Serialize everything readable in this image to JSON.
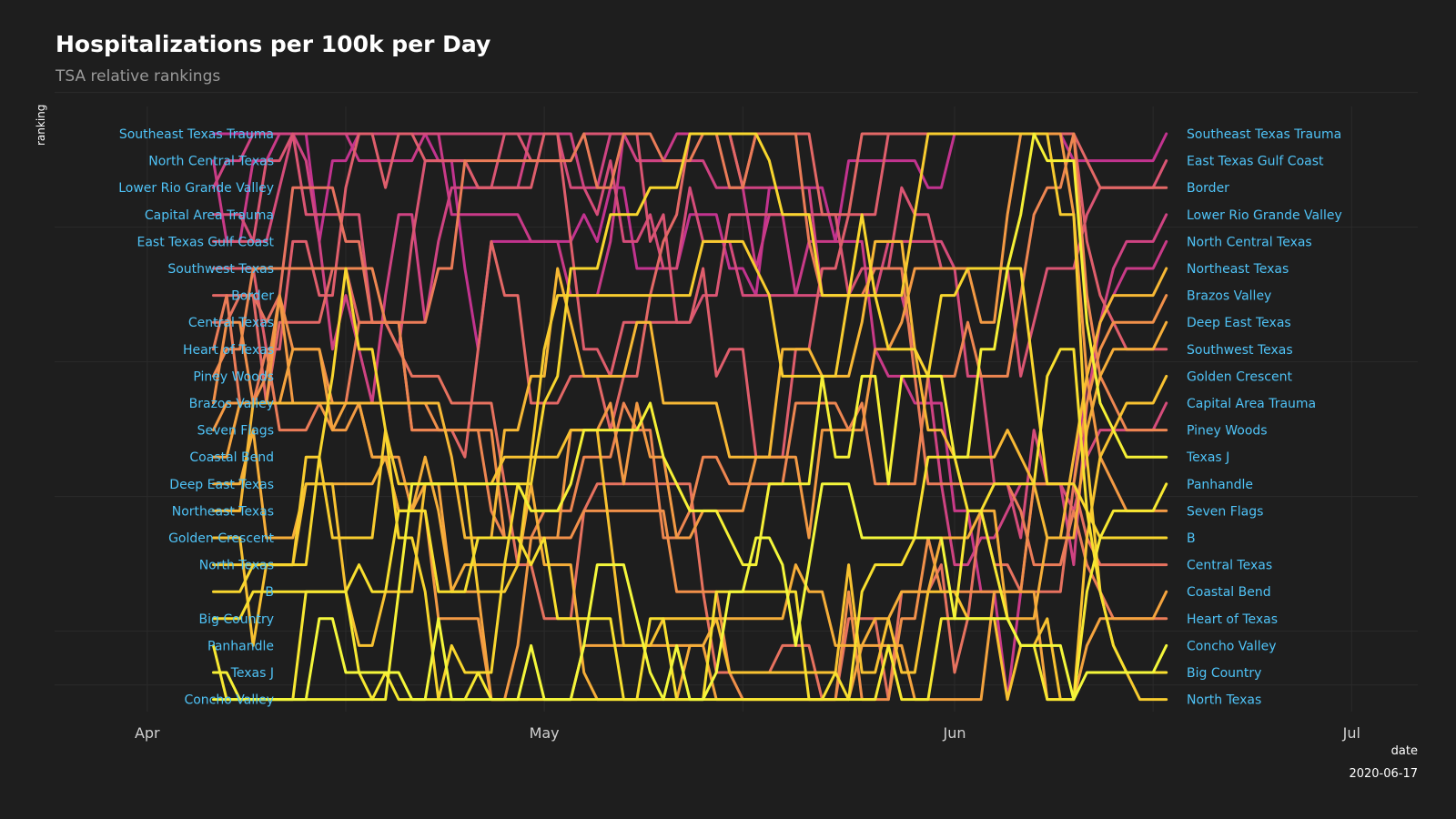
{
  "chart_data": {
    "type": "line",
    "title": "Hospitalizations per 100k per Day",
    "subtitle": "TSA relative rankings",
    "xlabel": "date",
    "ylabel": "ranking",
    "caption": "2020-06-17",
    "x_ticks": [
      "Apr",
      "May",
      "Jun",
      "Jul"
    ],
    "x_tick_dates": [
      "2020-04-01",
      "2020-05-01",
      "2020-06-01",
      "2020-07-01"
    ],
    "x_range": [
      "2020-03-25",
      "2020-07-06"
    ],
    "x_start": "2020-04-06",
    "x_end": "2020-06-17",
    "y_range": [
      1,
      22
    ],
    "left_labels": [
      "Southeast Texas Trauma",
      "North Central Texas",
      "Lower Rio Grande Valley",
      "Capital Area Trauma",
      "East Texas Gulf Coast",
      "Southwest Texas",
      "Border",
      "Central Texas",
      "Heart of Texas",
      "Piney Woods",
      "Brazos Valley",
      "Seven Flags",
      "Coastal Bend",
      "Deep East Texas",
      "Northeast Texas",
      "Golden Crescent",
      "North Texas",
      "B",
      "Big Country",
      "Panhandle",
      "Texas J",
      "Concho Valley"
    ],
    "right_labels": [
      "Southeast Texas Trauma",
      "East Texas Gulf Coast",
      "Border",
      "Lower Rio Grande Valley",
      "North Central Texas",
      "Northeast Texas",
      "Brazos Valley",
      "Deep East Texas",
      "Southwest Texas",
      "Golden Crescent",
      "Capital Area Trauma",
      "Piney Woods",
      "Texas J",
      "Panhandle",
      "Seven Flags",
      "B",
      "Central Texas",
      "Coastal Bend",
      "Heart of Texas",
      "Concho Valley",
      "Big Country",
      "North Texas"
    ],
    "series_colors": [
      "#c2338f",
      "#c93a88",
      "#cf4382",
      "#d54c7a",
      "#da5573",
      "#df5e6c",
      "#e36866",
      "#e7725f",
      "#eb7c58",
      "#ee8651",
      "#f1904a",
      "#f39a44",
      "#f5a43e",
      "#f6ae39",
      "#f7b835",
      "#f8c231",
      "#f8cc2f",
      "#f8d62e",
      "#f8df2f",
      "#f7e832",
      "#f6f036",
      "#f4f73b"
    ],
    "grid": true,
    "background": "#1e1e1e",
    "label_color": "#4fc3f7"
  }
}
